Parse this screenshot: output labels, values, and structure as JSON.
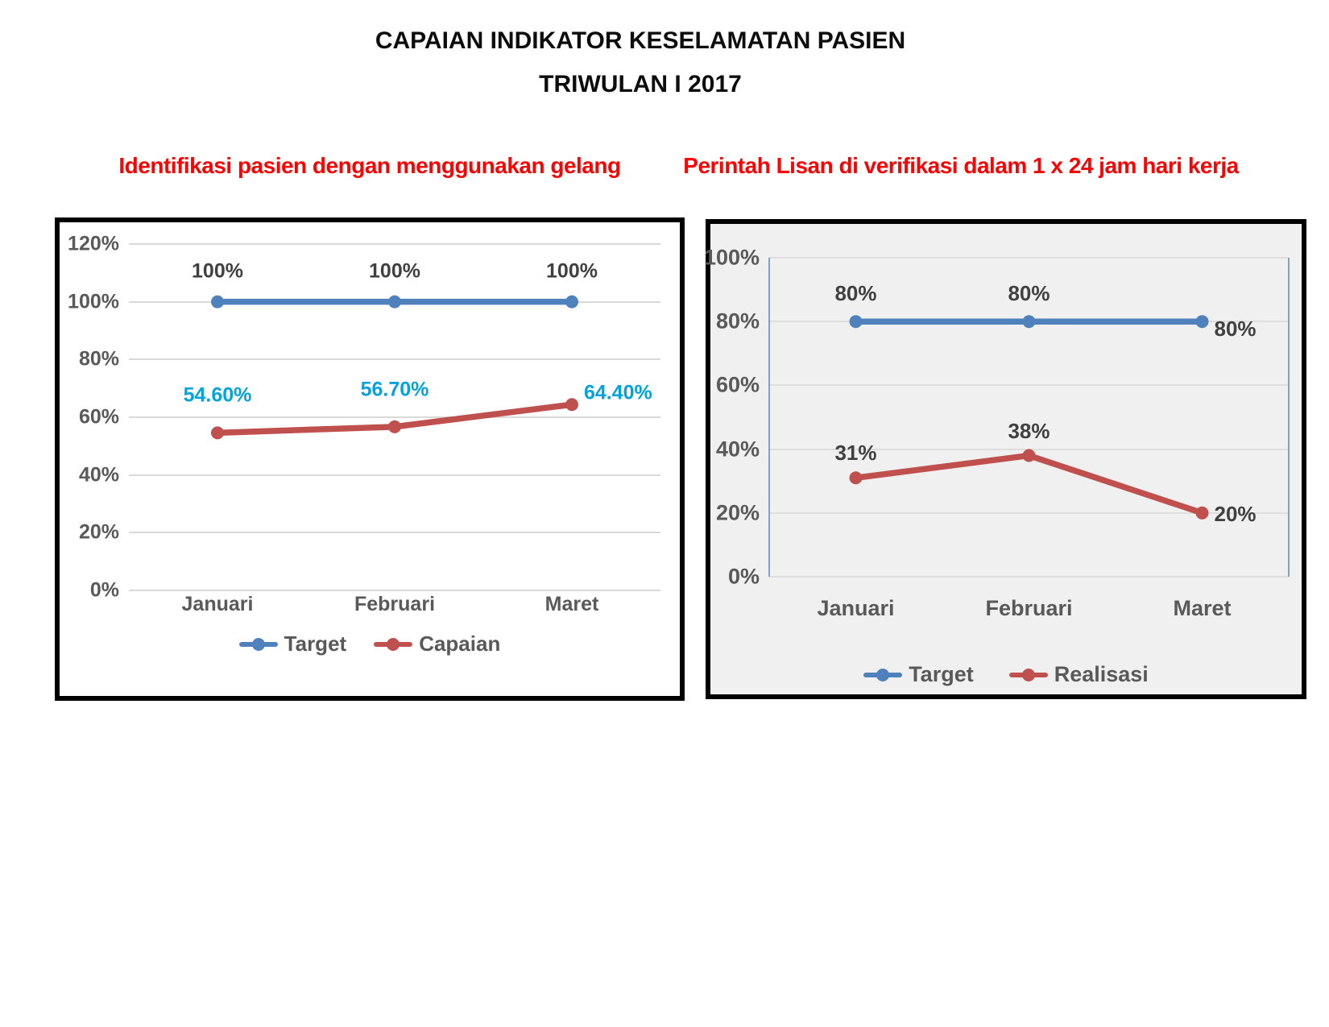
{
  "header": {
    "title_line1": "CAPAIAN INDIKATOR KESELAMATAN PASIEN",
    "title_line2": "TRIWULAN I 2017"
  },
  "colors": {
    "accent_blue": "#4F81BD",
    "accent_red": "#C0504D",
    "cyan_label": "#00A3E0",
    "dark_label": "#404040",
    "axis_text": "#595959",
    "title_red": "#FE0000",
    "chart1_bg": "#FFFFFF",
    "chart2_bg": "#F0F0F0",
    "chart2_axis_line": "#7FA3C8",
    "gridline": "#D9D9D9"
  },
  "chart_data": [
    {
      "type": "line",
      "title": "Identifikasi  pasien dengan menggunakan gelang",
      "categories": [
        "Januari",
        "Februari",
        "Maret"
      ],
      "ylim": [
        0,
        120
      ],
      "yticks": [
        0,
        20,
        40,
        60,
        80,
        100,
        120
      ],
      "ytick_labels": [
        "0%",
        "20%",
        "40%",
        "60%",
        "80%",
        "100%",
        "120%"
      ],
      "grid": "horizontal",
      "legend_position": "bottom",
      "series": [
        {
          "name": "Target",
          "values": [
            100,
            100,
            100
          ],
          "data_labels": [
            "100%",
            "100%",
            "100%"
          ],
          "color": "#4F81BD",
          "label_color": "#404040",
          "label_placement": [
            "above",
            "above",
            "above"
          ]
        },
        {
          "name": "Capaian",
          "values": [
            54.6,
            56.7,
            64.4
          ],
          "data_labels": [
            "54.60%",
            "56.70%",
            "64.40%"
          ],
          "color": "#C0504D",
          "label_color": "#00A3E0",
          "label_placement": [
            "above",
            "above",
            "right"
          ]
        }
      ]
    },
    {
      "type": "line",
      "title": "Perintah Lisan  di verifikasi dalam 1 x 24 jam hari kerja",
      "categories": [
        "Januari",
        "Februari",
        "Maret"
      ],
      "ylim": [
        0,
        100
      ],
      "yticks": [
        0,
        20,
        40,
        60,
        80,
        100
      ],
      "ytick_labels": [
        "0%",
        "20%",
        "40%",
        "60%",
        "80%",
        "100%"
      ],
      "grid": "horizontal",
      "legend_position": "bottom",
      "series": [
        {
          "name": "Target",
          "values": [
            80,
            80,
            80
          ],
          "data_labels": [
            "80%",
            "80%",
            "80%"
          ],
          "color": "#4F81BD",
          "label_color": "#404040",
          "label_placement": [
            "above",
            "above",
            "right"
          ]
        },
        {
          "name": "Realisasi",
          "values": [
            31,
            38,
            20
          ],
          "data_labels": [
            "31%",
            "38%",
            "20%"
          ],
          "color": "#C0504D",
          "label_color": "#404040",
          "label_placement": [
            "above",
            "above",
            "right"
          ]
        }
      ]
    }
  ]
}
